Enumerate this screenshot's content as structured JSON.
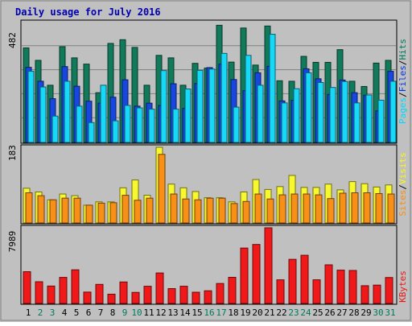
{
  "chart_data": [
    {
      "type": "bar",
      "title": "Daily usage for July 2016",
      "categories": [
        "1",
        "2",
        "3",
        "4",
        "5",
        "6",
        "7",
        "8",
        "9",
        "10",
        "11",
        "12",
        "13",
        "14",
        "15",
        "16",
        "17",
        "18",
        "19",
        "20",
        "21",
        "22",
        "23",
        "24",
        "25",
        "26",
        "27",
        "28",
        "29",
        "30",
        "31"
      ],
      "weekend_days": [
        "2",
        "3",
        "9",
        "10",
        "16",
        "17",
        "23",
        "24",
        "30",
        "31"
      ],
      "ymax_label": "482",
      "ylim": [
        0,
        482
      ],
      "legend": [
        {
          "label": "Pages",
          "color": "#00d8f8"
        },
        {
          "label": "/",
          "color": "#000000"
        },
        {
          "label": "Files",
          "color": "#0038e0"
        },
        {
          "label": "/",
          "color": "#000000"
        },
        {
          "label": "Hits",
          "color": "#00785a"
        }
      ],
      "series": [
        {
          "name": "Hits",
          "color": "#117a5b",
          "values": [
            380,
            330,
            230,
            385,
            340,
            315,
            200,
            398,
            413,
            382,
            230,
            350,
            340,
            230,
            318,
            299,
            471,
            323,
            460,
            311,
            468,
            248,
            246,
            346,
            322,
            322,
            373,
            246,
            225,
            319,
            330
          ]
        },
        {
          "name": "Files",
          "color": "#1846e0",
          "values": [
            302,
            246,
            176,
            305,
            226,
            166,
            158,
            182,
            252,
            146,
            158,
            149,
            236,
            137,
            237,
            301,
            315,
            253,
            208,
            280,
            306,
            167,
            170,
            296,
            256,
            193,
            251,
            200,
            190,
            127,
            286
          ]
        },
        {
          "name": "Pages",
          "color": "#18d8f8",
          "values": [
            286,
            223,
            106,
            246,
            146,
            80,
            230,
            87,
            149,
            139,
            134,
            289,
            134,
            215,
            290,
            295,
            358,
            142,
            350,
            230,
            435,
            159,
            216,
            280,
            241,
            221,
            245,
            159,
            191,
            170,
            246
          ]
        }
      ]
    },
    {
      "type": "bar",
      "categories": [
        "1",
        "2",
        "3",
        "4",
        "5",
        "6",
        "7",
        "8",
        "9",
        "10",
        "11",
        "12",
        "13",
        "14",
        "15",
        "16",
        "17",
        "18",
        "19",
        "20",
        "21",
        "22",
        "23",
        "24",
        "25",
        "26",
        "27",
        "28",
        "29",
        "30",
        "31"
      ],
      "ymax_label": "183",
      "ylim": [
        0,
        183
      ],
      "legend": [
        {
          "label": "Sites",
          "color": "#f89018"
        },
        {
          "label": "/",
          "color": "#000000"
        },
        {
          "label": "Visits",
          "color": "#f8f818"
        }
      ],
      "series": [
        {
          "name": "Visits",
          "color": "#f8f830",
          "values": [
            84,
            75,
            56,
            70,
            66,
            43,
            51,
            51,
            85,
            104,
            67,
            183,
            94,
            85,
            76,
            61,
            61,
            51,
            75,
            105,
            81,
            88,
            115,
            86,
            86,
            94,
            80,
            100,
            95,
            87,
            92
          ]
        },
        {
          "name": "Sites",
          "color": "#f89018",
          "values": [
            73,
            66,
            56,
            60,
            60,
            43,
            48,
            49,
            67,
            55,
            60,
            166,
            70,
            58,
            56,
            60,
            60,
            47,
            52,
            70,
            58,
            68,
            70,
            70,
            68,
            59,
            72,
            73,
            73,
            71,
            70
          ]
        }
      ]
    },
    {
      "type": "bar",
      "categories": [
        "1",
        "2",
        "3",
        "4",
        "5",
        "6",
        "7",
        "8",
        "9",
        "10",
        "11",
        "12",
        "13",
        "14",
        "15",
        "16",
        "17",
        "18",
        "19",
        "20",
        "21",
        "22",
        "23",
        "24",
        "25",
        "26",
        "27",
        "28",
        "29",
        "30",
        "31"
      ],
      "ymax_label": "7989",
      "ylim": [
        0,
        7989
      ],
      "legend": [
        {
          "label": "KBytes",
          "color": "#e81818"
        }
      ],
      "series": [
        {
          "name": "KBytes",
          "color": "#f01818",
          "values": [
            3355,
            2293,
            1840,
            2753,
            3553,
            1202,
            2015,
            980,
            2270,
            1170,
            1818,
            3220,
            1570,
            1820,
            1188,
            1340,
            2110,
            2760,
            5850,
            6230,
            7989,
            2497,
            4660,
            5090,
            2500,
            4080,
            3520,
            3483,
            1875,
            1937,
            2740
          ]
        }
      ]
    }
  ]
}
